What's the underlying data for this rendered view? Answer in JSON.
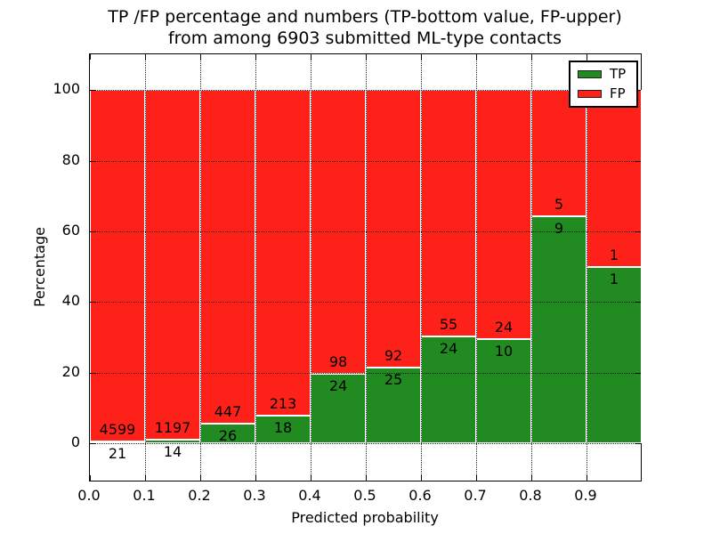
{
  "figure": {
    "title_line1": "TP /FP percentage and numbers (TP-bottom value, FP-upper)",
    "title_line2": "from among 6903 submitted ML-type contacts",
    "xlabel": "Predicted probability",
    "ylabel": "Percentage"
  },
  "chart_data": {
    "type": "bar",
    "stacked": true,
    "normalized": "each bin scaled to 100%, count labels shown at TP/FP boundary",
    "title": "TP /FP percentage and numbers (TP-bottom value, FP-upper) from among 6903 submitted ML-type contacts",
    "xlabel": "Predicted probability",
    "ylabel": "Percentage",
    "total_contacts": 6903,
    "bin_edges": [
      0.0,
      0.1,
      0.2,
      0.3,
      0.4,
      0.5,
      0.6,
      0.7,
      0.8,
      0.9,
      1.0
    ],
    "x_tick_labels": [
      "0.0",
      "0.1",
      "0.2",
      "0.3",
      "0.4",
      "0.5",
      "0.6",
      "0.7",
      "0.8",
      "0.9"
    ],
    "y_ticks": [
      0,
      20,
      40,
      60,
      80,
      100
    ],
    "xlim": [
      0,
      1.0
    ],
    "ylim": [
      -10.8,
      110.1
    ],
    "grid": "dotted black, both axes, drawn over bars",
    "bar_edge_color": "#ffffff",
    "series": [
      {
        "name": "TP",
        "color": "#218a21",
        "counts": [
          21,
          14,
          26,
          18,
          24,
          25,
          24,
          10,
          9,
          1
        ]
      },
      {
        "name": "FP",
        "color": "#fe2119",
        "counts": [
          4599,
          1197,
          447,
          213,
          98,
          92,
          55,
          24,
          5,
          1
        ]
      }
    ],
    "tp_percent_per_bin": [
      0.45,
      1.16,
      5.5,
      7.79,
      19.67,
      21.37,
      30.38,
      29.41,
      64.29,
      50.0
    ],
    "legend": {
      "position": "upper right",
      "entries": [
        {
          "label": "TP",
          "color": "#218a21"
        },
        {
          "label": "FP",
          "color": "#fe2119"
        }
      ]
    }
  }
}
